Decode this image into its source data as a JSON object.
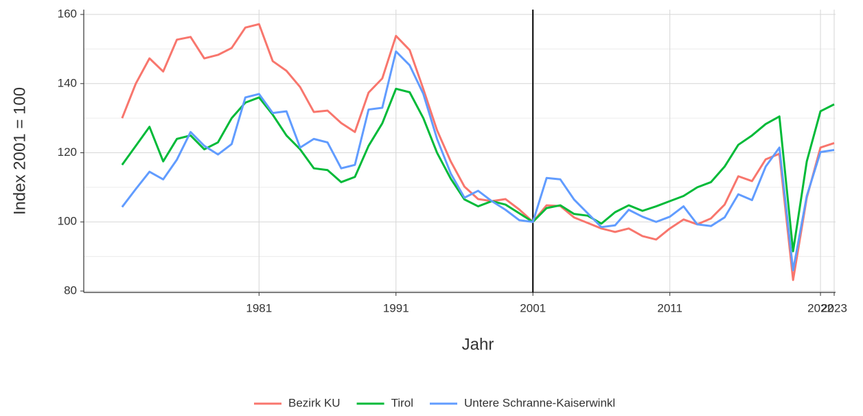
{
  "chart_data": {
    "type": "line",
    "x_label": "Jahr",
    "y_label": "Index 2001 = 100",
    "x": [
      1971,
      1972,
      1973,
      1974,
      1975,
      1976,
      1977,
      1978,
      1979,
      1980,
      1981,
      1982,
      1983,
      1984,
      1985,
      1986,
      1987,
      1988,
      1989,
      1990,
      1991,
      1992,
      1993,
      1994,
      1995,
      1996,
      1997,
      1998,
      1999,
      2000,
      2001,
      2002,
      2003,
      2004,
      2005,
      2006,
      2007,
      2008,
      2009,
      2010,
      2011,
      2012,
      2013,
      2014,
      2015,
      2016,
      2017,
      2018,
      2019,
      2020,
      2021,
      2022,
      2023
    ],
    "series": [
      {
        "name": "Bezirk KU",
        "color": "#f8766d",
        "values": [
          130,
          140,
          147.3,
          143.5,
          152.7,
          153.5,
          147.3,
          148.3,
          150.3,
          156.2,
          157.2,
          146.5,
          143.7,
          139,
          131.8,
          132.2,
          128.6,
          126,
          137.4,
          141.5,
          153.8,
          149.7,
          138.4,
          126.5,
          117.5,
          110.2,
          106.6,
          106,
          106.6,
          103.6,
          100,
          104.8,
          104.6,
          101.3,
          99.7,
          98.1,
          97.1,
          98.1,
          95.9,
          94.9,
          98.1,
          100.7,
          99.3,
          101,
          105,
          113.2,
          111.8,
          118.1,
          119.7,
          83.2,
          107,
          121.5,
          122.8
        ]
      },
      {
        "name": "Tirol",
        "color": "#00ba38",
        "values": [
          116.5,
          122,
          127.5,
          117.5,
          124,
          125,
          121,
          123,
          130,
          134.5,
          136,
          131,
          125,
          121,
          115.5,
          115,
          111.5,
          113,
          122,
          128.5,
          138.5,
          137.5,
          130,
          120,
          112.5,
          106.5,
          104.5,
          106,
          105,
          102.5,
          100,
          104,
          104.8,
          102.3,
          101.8,
          99.5,
          102.8,
          104.8,
          103.2,
          104.5,
          106,
          107.5,
          110,
          111.5,
          116,
          122.3,
          125,
          128.3,
          130.5,
          91.5,
          117.5,
          132,
          134
        ]
      },
      {
        "name": "Untere Schranne-Kaiserwinkl",
        "color": "#619cff",
        "values": [
          104.3,
          109.5,
          114.5,
          112.3,
          118,
          126,
          122,
          119.5,
          122.5,
          136,
          137,
          131.5,
          132,
          121.5,
          124,
          123,
          115.5,
          116.5,
          132.5,
          133,
          149.3,
          145.3,
          137,
          124,
          114,
          107,
          109,
          106,
          103.5,
          100.5,
          100,
          112.7,
          112.3,
          106.5,
          102.5,
          98.5,
          99,
          103.5,
          101.5,
          100,
          101.5,
          104.5,
          99.3,
          98.8,
          101.3,
          108,
          106.3,
          116,
          121.5,
          86,
          107.5,
          120.2,
          120.8
        ]
      }
    ],
    "xlim": [
      1968.2,
      2023.1
    ],
    "xticks": [
      1981,
      1991,
      2001,
      2011,
      2022,
      2023
    ],
    "ylim": [
      79.6,
      161.4
    ],
    "yticks": [
      80,
      100,
      120,
      140,
      160
    ],
    "minor_yticks": [
      90,
      110,
      130,
      150
    ],
    "vline": 2001,
    "grid": true,
    "legend": "bottom"
  }
}
